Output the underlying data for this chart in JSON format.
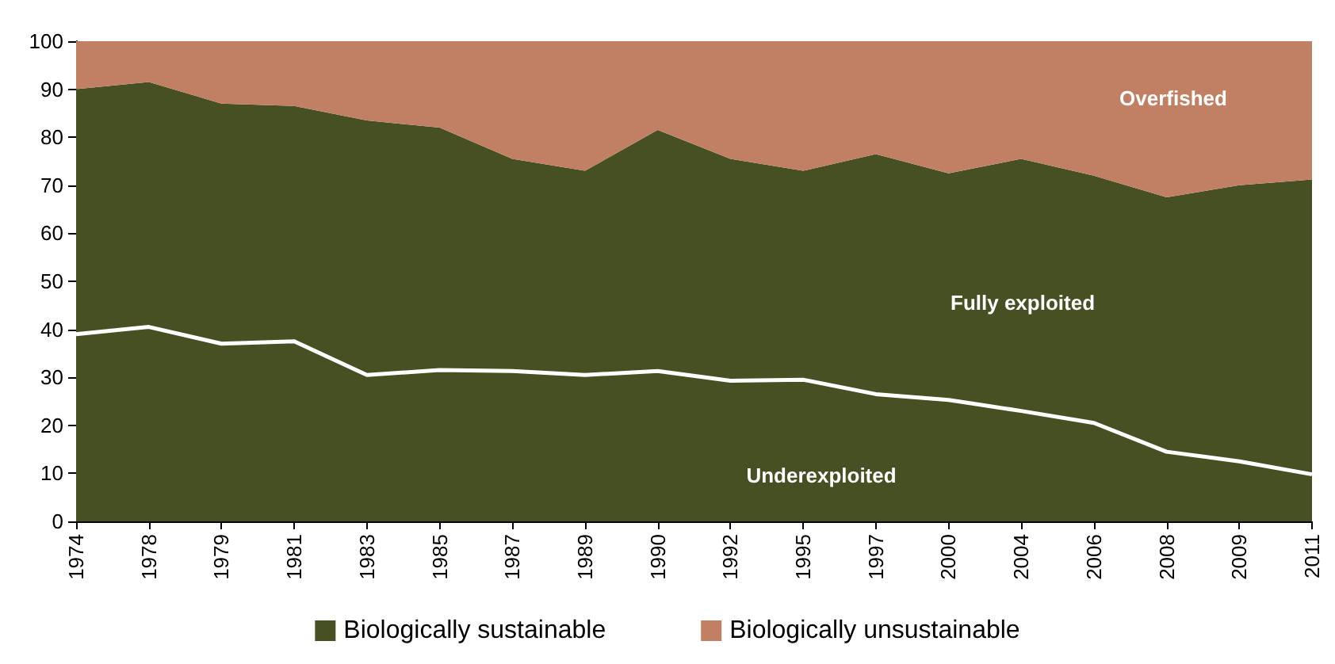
{
  "chart_data": {
    "type": "area",
    "stacked": true,
    "categories": [
      "1974",
      "1978",
      "1979",
      "1981",
      "1983",
      "1985",
      "1987",
      "1989",
      "1990",
      "1992",
      "1995",
      "1997",
      "2000",
      "2004",
      "2006",
      "2008",
      "2009",
      "2011"
    ],
    "series": [
      {
        "color": "#465022",
        "values": [
          39,
          40.5,
          37,
          37.5,
          30.5,
          31.5,
          31.3,
          30.5,
          31.3,
          29.3,
          29.5,
          26.5,
          25.3,
          23,
          20.5,
          14.5,
          12.5,
          9.8
        ]
      },
      {
        "name": "Biologically sustainable",
        "color": "#465022",
        "values": [
          51,
          51,
          50,
          49,
          53,
          50.5,
          44.2,
          42.5,
          50.2,
          46.2,
          43.5,
          50,
          47.2,
          52.5,
          51.5,
          53,
          57.5,
          61.4
        ]
      },
      {
        "name": "Biologically unsustainable",
        "color": "#c17f63",
        "values": [
          10,
          8.5,
          13,
          13.5,
          16.5,
          18,
          24.5,
          27,
          18.5,
          24.5,
          27,
          23.5,
          27.5,
          24.5,
          28,
          32.5,
          30,
          28.8
        ]
      }
    ],
    "ylim": [
      0,
      100
    ],
    "yticks": [
      0,
      10,
      20,
      30,
      40,
      50,
      60,
      70,
      80,
      90,
      100
    ],
    "grid": false,
    "legend": "bottom",
    "annotations": [
      "Underexploited",
      "Fully exploited",
      "Overfished"
    ]
  }
}
